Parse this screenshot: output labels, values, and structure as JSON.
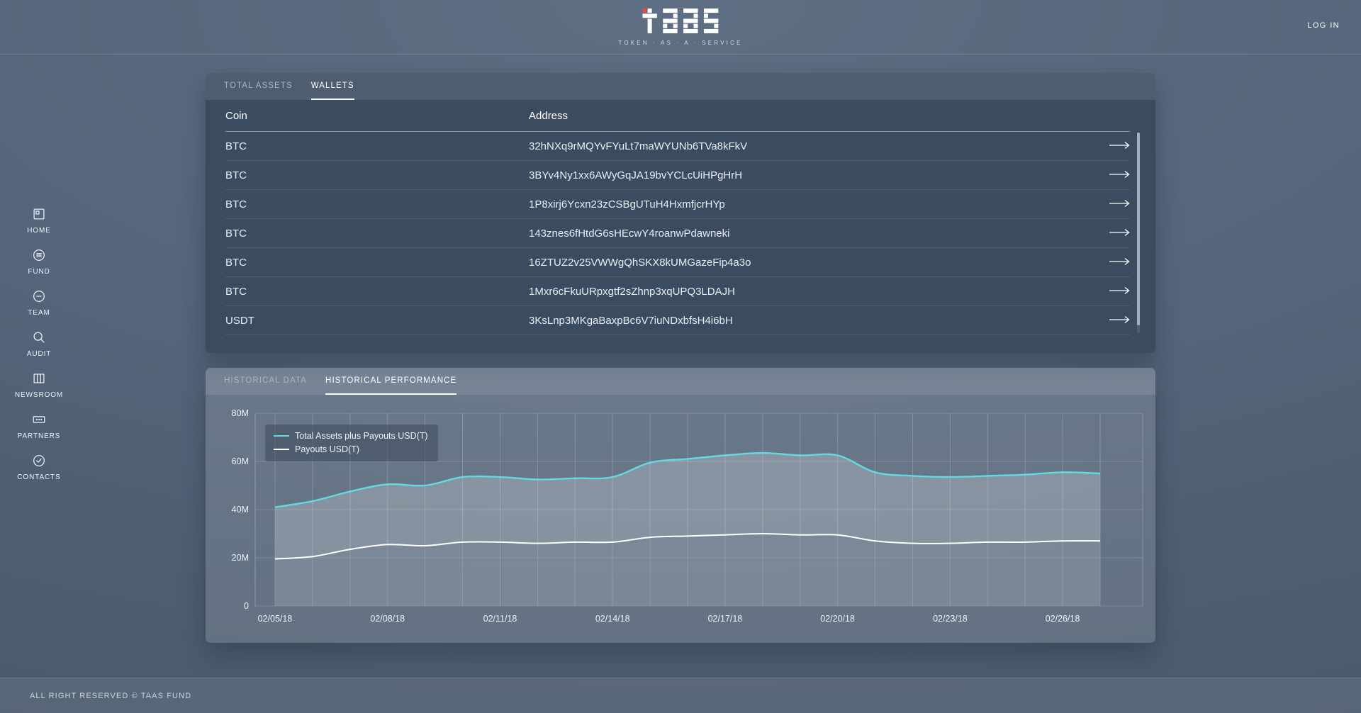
{
  "header": {
    "logo_text": "taas",
    "logo_subtitle": "TOKEN · AS · A · SERVICE",
    "logo_accent_color": "#e8493f",
    "login_label": "LOG IN"
  },
  "sidebar": {
    "items": [
      {
        "label": "HOME",
        "icon": "home-icon"
      },
      {
        "label": "FUND",
        "icon": "fund-icon"
      },
      {
        "label": "TEAM",
        "icon": "team-icon"
      },
      {
        "label": "AUDIT",
        "icon": "audit-icon"
      },
      {
        "label": "NEWSROOM",
        "icon": "newsroom-icon"
      },
      {
        "label": "PARTNERS",
        "icon": "partners-icon"
      },
      {
        "label": "CONTACTS",
        "icon": "contacts-icon"
      }
    ]
  },
  "wallets_panel": {
    "tabs": [
      {
        "label": "TOTAL ASSETS",
        "active": false
      },
      {
        "label": "WALLETS",
        "active": true
      }
    ],
    "table": {
      "columns": [
        "Coin",
        "Address"
      ],
      "rows": [
        {
          "coin": "BTC",
          "address": "32hNXq9rMQYvFYuLt7maWYUNb6TVa8kFkV"
        },
        {
          "coin": "BTC",
          "address": "3BYv4Ny1xx6AWyGqJA19bvYCLcUiHPgHrH"
        },
        {
          "coin": "BTC",
          "address": "1P8xirj6Ycxn23zCSBgUTuH4HxmfjcrHYp"
        },
        {
          "coin": "BTC",
          "address": "143znes6fHtdG6sHEcwY4roanwPdawneki"
        },
        {
          "coin": "BTC",
          "address": "16ZTUZ2v25VWWgQhSKX8kUMGazeFip4a3o"
        },
        {
          "coin": "BTC",
          "address": "1Mxr6cFkuURpxgtf2sZhnp3xqUPQ3LDAJH"
        },
        {
          "coin": "USDT",
          "address": "3KsLnp3MKgaBaxpBc6V7iuNDxbfsH4i6bH"
        }
      ]
    }
  },
  "history_panel": {
    "tabs": [
      {
        "label": "HISTORICAL DATA",
        "active": false
      },
      {
        "label": "HISTORICAL PERFORMANCE",
        "active": true
      }
    ]
  },
  "chart_data": {
    "type": "line",
    "title": "",
    "xlabel": "",
    "ylabel": "",
    "value_unit": "USD millions",
    "grid": true,
    "legend_position": "top-left",
    "x": [
      "02/05/18",
      "02/06/18",
      "02/07/18",
      "02/08/18",
      "02/09/18",
      "02/10/18",
      "02/11/18",
      "02/12/18",
      "02/13/18",
      "02/14/18",
      "02/15/18",
      "02/16/18",
      "02/17/18",
      "02/18/18",
      "02/19/18",
      "02/20/18",
      "02/21/18",
      "02/22/18",
      "02/23/18",
      "02/24/18",
      "02/25/18",
      "02/26/18",
      "02/27/18"
    ],
    "xtick_labels": [
      "02/05/18",
      "02/08/18",
      "02/11/18",
      "02/14/18",
      "02/17/18",
      "02/20/18",
      "02/23/18",
      "02/26/18"
    ],
    "ylim": [
      0,
      80
    ],
    "yticks": [
      {
        "value": 0,
        "label": "0"
      },
      {
        "value": 20,
        "label": "20M"
      },
      {
        "value": 40,
        "label": "40M"
      },
      {
        "value": 60,
        "label": "60M"
      },
      {
        "value": 80,
        "label": "80M"
      }
    ],
    "series": [
      {
        "name": "Total Assets plus Payouts USD(T)",
        "color": "#63d9e4",
        "values": [
          41,
          43.5,
          47.5,
          50.5,
          50,
          53.5,
          53.5,
          52.5,
          53,
          53.5,
          59.5,
          61,
          62.5,
          63.5,
          62.5,
          62.5,
          55.5,
          54,
          53.5,
          54,
          54.5,
          55.5,
          55
        ]
      },
      {
        "name": "Payouts USD(T)",
        "color": "#ffffff",
        "values": [
          19.5,
          20.5,
          23.5,
          25.5,
          25,
          26.5,
          26.5,
          26,
          26.5,
          26.5,
          28.5,
          29,
          29.5,
          30,
          29.5,
          29.5,
          27,
          26,
          26,
          26.5,
          26.5,
          27,
          27
        ]
      }
    ]
  },
  "footer": {
    "copyright": "ALL RIGHT RESERVED © TAAS FUND"
  }
}
